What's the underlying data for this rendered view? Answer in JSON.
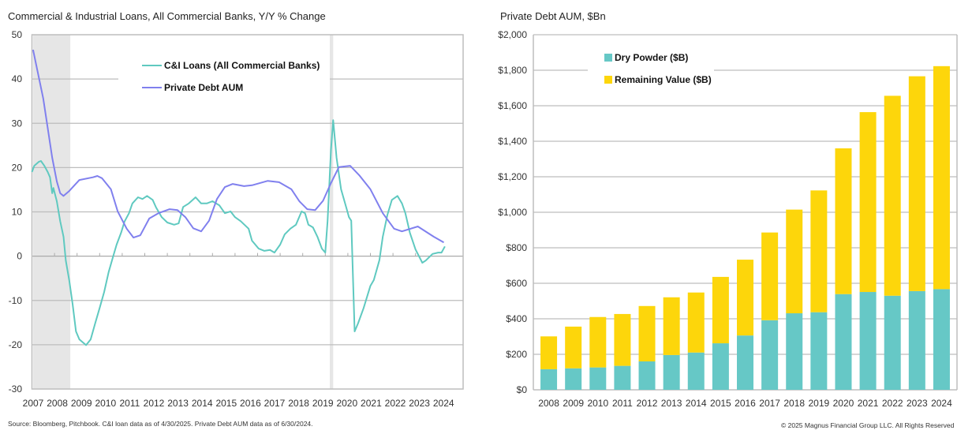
{
  "footer": {
    "source": "Source: Bloomberg, Pitchbook. C&I loan data as of 4/30/2025. Private Debt AUM data as of 6/30/2024.",
    "copyright": "© 2025 Magnus Financial Group LLC. All Rights Reserved"
  },
  "chart_data": [
    {
      "type": "line",
      "title": "Commercial & Industrial Loans, All Commercial Banks, Y/Y % Change",
      "xlabel": "",
      "ylabel": "",
      "ylim": [
        -30,
        50
      ],
      "yticks": [
        50,
        40,
        30,
        20,
        10,
        0,
        -10,
        -20,
        -30
      ],
      "xlim": [
        2007,
        2025.35
      ],
      "xtick_labels": [
        "2007",
        "2008",
        "2009",
        "2010",
        "2011",
        "2012",
        "2013",
        "2014",
        "2015",
        "2016",
        "2017",
        "2018",
        "2019",
        "2020",
        "2021",
        "2022",
        "2023",
        "2024"
      ],
      "grid": true,
      "legend_placement": "top-center",
      "shaded_periods": [
        [
          2007.05,
          2008.7
        ],
        [
          2020.2,
          2020.35
        ]
      ],
      "colors": {
        "shade": "#e6e6e6",
        "grid": "#bdbdbd"
      },
      "series": [
        {
          "name": "C&I Loans (All Commercial Banks)",
          "color": "#5fc9c0",
          "x": [
            2007.0,
            2007.1,
            2007.3,
            2007.4,
            2007.55,
            2007.7,
            2007.8,
            2007.9,
            2007.95,
            2008.1,
            2008.25,
            2008.4,
            2008.5,
            2008.65,
            2008.8,
            2008.95,
            2009.1,
            2009.4,
            2009.6,
            2009.8,
            2010.0,
            2010.2,
            2010.4,
            2010.6,
            2010.75,
            2010.95,
            2011.1,
            2011.3,
            2011.45,
            2011.7,
            2011.9,
            2012.1,
            2012.35,
            2012.5,
            2012.75,
            2013.0,
            2013.3,
            2013.5,
            2013.7,
            2013.95,
            2014.25,
            2014.5,
            2014.75,
            2015.0,
            2015.3,
            2015.55,
            2015.8,
            2016.0,
            2016.25,
            2016.6,
            2016.75,
            2017.05,
            2017.3,
            2017.55,
            2017.75,
            2018.0,
            2018.2,
            2018.45,
            2018.7,
            2018.95,
            2019.1,
            2019.25,
            2019.45,
            2019.65,
            2019.85,
            2020.0,
            2020.1,
            2020.25,
            2020.35,
            2020.5,
            2020.7,
            2020.95,
            2021.05,
            2021.15,
            2021.3,
            2021.45,
            2021.7,
            2022.0,
            2022.15,
            2022.4,
            2022.55,
            2022.75,
            2022.95,
            2023.2,
            2023.4,
            2023.55,
            2023.75,
            2024.0,
            2024.3,
            2024.45,
            2024.75,
            2025.0,
            2025.15,
            2025.3
          ],
          "values": [
            19.0,
            20.4,
            21.3,
            21.5,
            20.4,
            19.0,
            17.8,
            14.2,
            15.4,
            12.4,
            7.9,
            4.4,
            -1.0,
            -5.4,
            -10.8,
            -17.0,
            -18.8,
            -20.1,
            -18.8,
            -15.2,
            -11.7,
            -8.1,
            -3.6,
            0.0,
            2.6,
            5.3,
            7.8,
            9.7,
            11.9,
            13.3,
            12.9,
            13.6,
            12.7,
            11.0,
            8.8,
            7.6,
            7.1,
            7.4,
            11.1,
            11.9,
            13.3,
            11.9,
            11.9,
            12.4,
            11.5,
            9.7,
            10.1,
            8.8,
            7.9,
            6.2,
            3.5,
            1.7,
            1.2,
            1.4,
            0.8,
            2.6,
            4.9,
            6.2,
            7.1,
            10.1,
            9.7,
            7.1,
            6.5,
            4.4,
            1.7,
            0.8,
            7.9,
            24.0,
            30.7,
            22.2,
            15.1,
            10.6,
            8.8,
            8.0,
            -17.0,
            -15.2,
            -11.7,
            -6.7,
            -5.4,
            -0.9,
            4.4,
            9.3,
            12.7,
            13.6,
            11.9,
            9.7,
            5.3,
            1.5,
            -1.5,
            -1.0,
            0.5,
            0.8,
            0.8,
            2.2
          ]
        },
        {
          "name": "Private Debt AUM",
          "color": "#8080ee",
          "x": [
            2007.05,
            2007.5,
            2007.9,
            2008.1,
            2008.25,
            2008.4,
            2008.65,
            2009.1,
            2009.7,
            2009.9,
            2010.1,
            2010.5,
            2010.8,
            2011.2,
            2011.5,
            2011.8,
            2012.2,
            2012.6,
            2013.1,
            2013.45,
            2013.8,
            2014.15,
            2014.5,
            2014.85,
            2015.2,
            2015.55,
            2015.9,
            2016.4,
            2016.75,
            2017.45,
            2017.95,
            2018.5,
            2018.85,
            2019.2,
            2019.55,
            2019.9,
            2020.25,
            2020.6,
            2021.1,
            2021.5,
            2022.0,
            2022.55,
            2023.05,
            2023.4,
            2024.1,
            2024.8,
            2025.25
          ],
          "values": [
            46.6,
            35.6,
            22.2,
            16.9,
            14.2,
            13.6,
            14.7,
            17.2,
            17.8,
            18.1,
            17.6,
            15.1,
            10.1,
            6.2,
            4.2,
            4.7,
            8.5,
            9.7,
            10.6,
            10.4,
            8.8,
            6.3,
            5.6,
            8.0,
            12.9,
            15.6,
            16.3,
            15.8,
            16.0,
            17.0,
            16.7,
            15.1,
            12.4,
            10.6,
            10.4,
            12.5,
            16.5,
            20.1,
            20.4,
            18.3,
            15.1,
            9.7,
            6.2,
            5.6,
            6.7,
            4.4,
            3.1
          ]
        }
      ]
    },
    {
      "type": "bar",
      "stacked": true,
      "title": "Private Debt AUM, $Bn",
      "xlabel": "",
      "ylabel": "",
      "ylim": [
        0,
        2000
      ],
      "yticks": [
        0,
        200,
        400,
        600,
        800,
        1000,
        1200,
        1400,
        1600,
        1800,
        2000
      ],
      "ytick_labels": [
        "$0",
        "$200",
        "$400",
        "$600",
        "$800",
        "$1,000",
        "$1,200",
        "$1,400",
        "$1,600",
        "$1,800",
        "$2,000"
      ],
      "grid": true,
      "legend_placement": "top-left",
      "categories": [
        "2008",
        "2009",
        "2010",
        "2011",
        "2012",
        "2013",
        "2014",
        "2015",
        "2016",
        "2017",
        "2018",
        "2019",
        "2020",
        "2021",
        "2022",
        "2023",
        "2024"
      ],
      "series": [
        {
          "name": "Dry Powder ($B)",
          "color": "#66c8c6",
          "values": [
            116,
            121,
            126,
            135,
            160,
            196,
            210,
            262,
            306,
            392,
            431,
            437,
            539,
            551,
            530,
            556,
            567
          ]
        },
        {
          "name": "Remaining Value ($B)",
          "color": "#fdd60b",
          "values": [
            185,
            235,
            284,
            292,
            312,
            325,
            338,
            374,
            427,
            494,
            584,
            686,
            821,
            1013,
            1126,
            1210,
            1256
          ]
        }
      ]
    }
  ]
}
